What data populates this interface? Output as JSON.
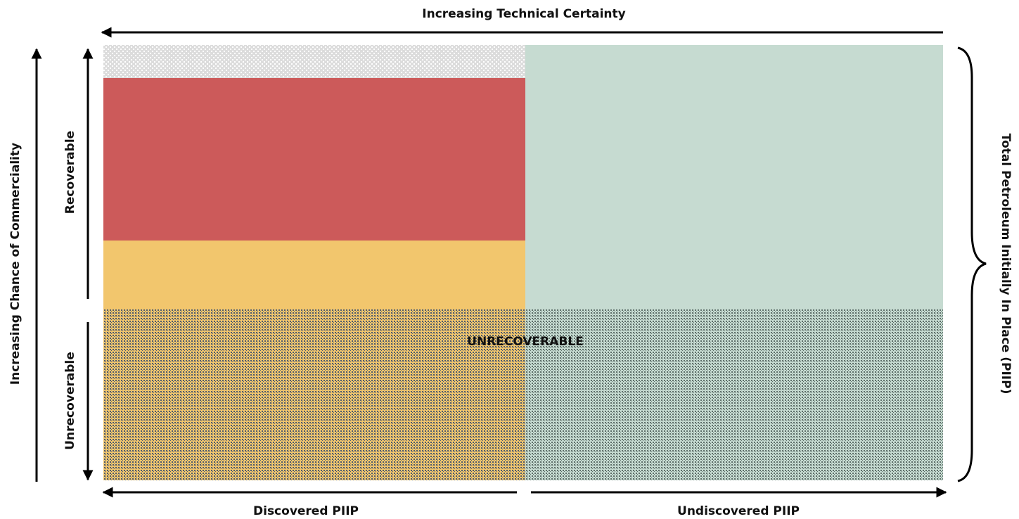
{
  "top_axis": {
    "label": "Increasing Technical Certainty"
  },
  "left_axis": {
    "label": "Increasing Chance of Commerciality"
  },
  "rows": [
    {
      "label": "Recoverable"
    },
    {
      "label": "Unrecoverable"
    }
  ],
  "center_label": "UNRECOVERABLE",
  "columns": [
    {
      "label": "Discovered PIIP"
    },
    {
      "label": "Undiscovered PIIP"
    }
  ],
  "right_label": "Total Petroleum Initially In Place (PIIP)"
}
